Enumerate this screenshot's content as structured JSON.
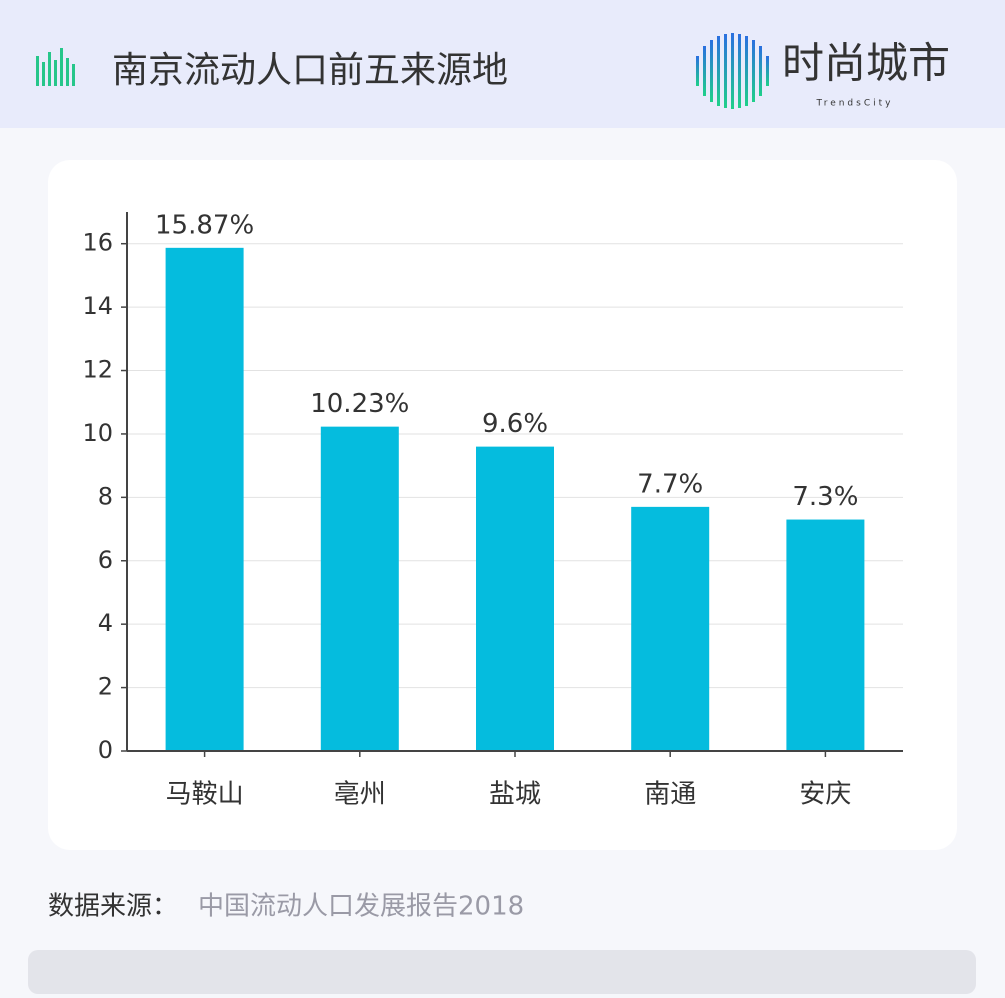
{
  "header": {
    "title": "南京流动人口前五来源地",
    "logo": "时尚城市",
    "logo_sub": "TrendsCity"
  },
  "chart_data": {
    "type": "bar",
    "categories": [
      "马鞍山",
      "亳州",
      "盐城",
      "南通",
      "安庆"
    ],
    "values": [
      15.87,
      10.23,
      9.6,
      7.7,
      7.3
    ],
    "value_labels": [
      "15.87%",
      "10.23%",
      "9.6%",
      "7.7%",
      "7.3%"
    ],
    "color": "#05bcde",
    "ylim": [
      0,
      17
    ],
    "yticks": [
      0,
      2,
      4,
      6,
      8,
      10,
      12,
      14,
      16
    ],
    "grid": true
  },
  "footer": {
    "label": "数据来源：",
    "source": "中国流动人口发展报告2018"
  }
}
